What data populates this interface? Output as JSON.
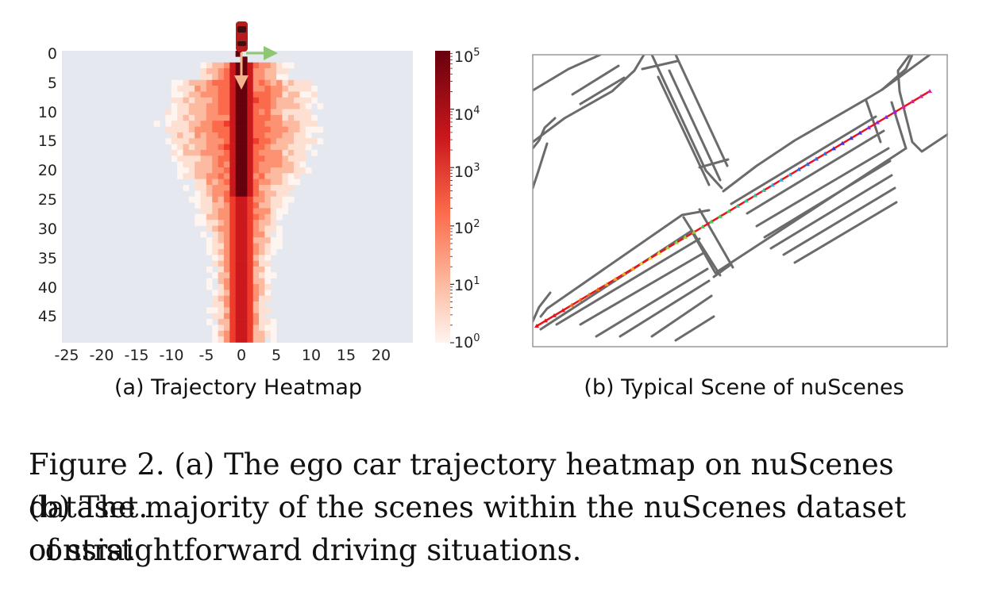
{
  "figure": {
    "panel_a": {
      "label": "(a) Trajectory Heatmap",
      "x_ticks": [
        "-25",
        "-20",
        "-15",
        "-10",
        "-5",
        "0",
        "5",
        "10",
        "15",
        "20"
      ],
      "y_ticks": [
        "0",
        "5",
        "10",
        "15",
        "20",
        "25",
        "30",
        "35",
        "40",
        "45"
      ],
      "colorbar_ticks": [
        {
          "base": "10",
          "exp": "5"
        },
        {
          "base": "10",
          "exp": "4"
        },
        {
          "base": "10",
          "exp": "3"
        },
        {
          "base": "10",
          "exp": "2"
        },
        {
          "base": "10",
          "exp": "1"
        },
        {
          "base": "10",
          "exp": "0"
        }
      ],
      "colorbar_scale": "log",
      "colors": {
        "background": "#e6e8f0",
        "low": "#fde7e0",
        "mid": "#ef5a40",
        "high": "#67000d",
        "arrow_forward": "#f2b48a",
        "arrow_right": "#8dc774"
      }
    },
    "panel_b": {
      "label": "(b) Typical Scene of nuScenes",
      "colors": {
        "lane": "#6b6b6b",
        "trajectory": "#e8141a",
        "frame": "#999999"
      }
    },
    "caption": {
      "line1": "Figure 2. (a) The ego car trajectory heatmap on nuScenes dataset.",
      "line2": "(b) The majority of the scenes within the nuScenes dataset consist",
      "line3": "of straightforward driving situations."
    }
  }
}
